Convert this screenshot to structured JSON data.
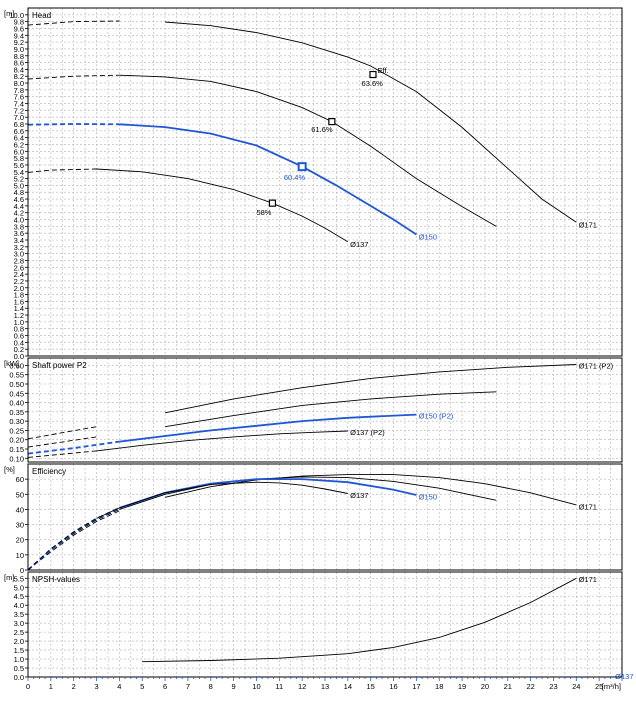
{
  "chart_data": [
    {
      "panel": "head",
      "type": "line",
      "title": "Head",
      "unit": "[m]",
      "y_ticks": [
        "0.0",
        "0.2",
        "0.4",
        "0.6",
        "0.8",
        "1.0",
        "1.2",
        "1.4",
        "1.6",
        "1.8",
        "2.0",
        "2.2",
        "2.4",
        "2.6",
        "2.8",
        "3.0",
        "3.2",
        "3.4",
        "3.6",
        "3.8",
        "4.0",
        "4.2",
        "4.4",
        "4.6",
        "4.8",
        "5.0",
        "5.2",
        "5.4",
        "5.6",
        "5.8",
        "6.0",
        "6.2",
        "6.4",
        "6.6",
        "6.8",
        "7.0",
        "7.2",
        "7.4",
        "7.6",
        "7.8",
        "8.0",
        "8.2",
        "8.4",
        "8.6",
        "8.8",
        "9.0",
        "9.2",
        "9.4",
        "9.6",
        "9.8",
        "10.0"
      ],
      "ylim": [
        0,
        10.2
      ],
      "series": [
        {
          "name": "Ø171",
          "color": "#000000",
          "dashed_to_x": 5,
          "points": [
            [
              0,
              9.7
            ],
            [
              2,
              9.8
            ],
            [
              4,
              9.82
            ],
            [
              6,
              9.79
            ],
            [
              8,
              9.68
            ],
            [
              10,
              9.48
            ],
            [
              12,
              9.18
            ],
            [
              14,
              8.76
            ],
            [
              15,
              8.5
            ],
            [
              17,
              7.75
            ],
            [
              19,
              6.7
            ],
            [
              21,
              5.5
            ],
            [
              22.5,
              4.6
            ],
            [
              24,
              3.92
            ]
          ]
        },
        {
          "name": "Ø150",
          "color": "#000000",
          "dashed_to_x": 4,
          "points": [
            [
              0,
              8.12
            ],
            [
              2,
              8.2
            ],
            [
              4,
              8.23
            ],
            [
              6,
              8.18
            ],
            [
              8,
              8.05
            ],
            [
              10,
              7.75
            ],
            [
              12,
              7.28
            ],
            [
              13.3,
              6.87
            ],
            [
              15,
              6.15
            ],
            [
              17,
              5.2
            ],
            [
              19,
              4.38
            ],
            [
              20.5,
              3.8
            ]
          ]
        },
        {
          "name": "Ø150",
          "color": "#1f57d6",
          "dashed_to_x": 4,
          "points": [
            [
              0,
              6.78
            ],
            [
              2,
              6.8
            ],
            [
              4,
              6.79
            ],
            [
              6,
              6.71
            ],
            [
              8,
              6.52
            ],
            [
              10,
              6.17
            ],
            [
              12,
              5.55
            ],
            [
              13.5,
              5.0
            ],
            [
              15,
              4.4
            ],
            [
              16,
              4.0
            ],
            [
              17,
              3.56
            ]
          ]
        },
        {
          "name": "Ø137",
          "color": "#000000",
          "dashed_to_x": 3,
          "points": [
            [
              0,
              5.38
            ],
            [
              1,
              5.45
            ],
            [
              3,
              5.48
            ],
            [
              5,
              5.4
            ],
            [
              7,
              5.2
            ],
            [
              9,
              4.88
            ],
            [
              10.7,
              4.48
            ],
            [
              12,
              4.1
            ],
            [
              13,
              3.75
            ],
            [
              14,
              3.35
            ]
          ]
        }
      ],
      "labels": [
        {
          "text": "Ø171",
          "x": 24.1,
          "y": 3.85,
          "color": "#000000"
        },
        {
          "text": "Ø150",
          "x": 17.1,
          "y": 3.5,
          "color": "#1f57d6"
        },
        {
          "text": "Ø137",
          "x": 14.1,
          "y": 3.28,
          "color": "#000000"
        },
        {
          "text": "Eff.",
          "x": 15.3,
          "y": 8.38,
          "color": "#000000"
        },
        {
          "text": "63.6%",
          "x": 14.6,
          "y": 8.0,
          "color": "#000000"
        },
        {
          "text": "61.6%",
          "x": 12.4,
          "y": 6.65,
          "color": "#000000"
        },
        {
          "text": "60.4%",
          "x": 11.2,
          "y": 5.25,
          "color": "#1f57d6"
        },
        {
          "text": "58%",
          "x": 10.0,
          "y": 4.22,
          "color": "#000000"
        }
      ],
      "markers": [
        {
          "x": 15.1,
          "y": 8.25,
          "color": "#000000",
          "large": false
        },
        {
          "x": 13.3,
          "y": 6.87,
          "color": "#000000",
          "large": false
        },
        {
          "x": 12.0,
          "y": 5.55,
          "color": "#1f57d6",
          "large": true
        },
        {
          "x": 10.7,
          "y": 4.48,
          "color": "#000000",
          "large": false
        }
      ]
    },
    {
      "panel": "power",
      "type": "line",
      "title": "Shaft power P2",
      "unit": "[kW]",
      "y_ticks": [
        "0.10",
        "0.15",
        "0.20",
        "0.25",
        "0.30",
        "0.35",
        "0.40",
        "0.45",
        "0.50",
        "0.55",
        "0.60"
      ],
      "ylim": [
        0.08,
        0.64
      ],
      "series": [
        {
          "name": "Ø171 (P2)",
          "color": "#000000",
          "dashed_to_x": 5,
          "points": [
            [
              0,
              0.205
            ],
            [
              3,
              0.27
            ],
            [
              6,
              0.345
            ],
            [
              9,
              0.42
            ],
            [
              12,
              0.48
            ],
            [
              15,
              0.53
            ],
            [
              18,
              0.565
            ],
            [
              21,
              0.59
            ],
            [
              24,
              0.605
            ]
          ]
        },
        {
          "name": "Ø150",
          "color": "#000000",
          "dashed_to_x": 4,
          "points": [
            [
              0,
              0.16
            ],
            [
              3,
              0.215
            ],
            [
              6,
              0.27
            ],
            [
              9,
              0.33
            ],
            [
              12,
              0.385
            ],
            [
              15,
              0.42
            ],
            [
              18,
              0.445
            ],
            [
              20.5,
              0.458
            ]
          ]
        },
        {
          "name": "Ø150 (P2)",
          "color": "#1f57d6",
          "dashed_to_x": 4,
          "points": [
            [
              0,
              0.125
            ],
            [
              2,
              0.155
            ],
            [
              4,
              0.19
            ],
            [
              6,
              0.22
            ],
            [
              8,
              0.25
            ],
            [
              10,
              0.275
            ],
            [
              12,
              0.3
            ],
            [
              14,
              0.318
            ],
            [
              17,
              0.335
            ]
          ]
        },
        {
          "name": "Ø137 (P2)",
          "color": "#000000",
          "dashed_to_x": 3,
          "points": [
            [
              0,
              0.105
            ],
            [
              3,
              0.14
            ],
            [
              5,
              0.17
            ],
            [
              7,
              0.195
            ],
            [
              9,
              0.215
            ],
            [
              11,
              0.232
            ],
            [
              12.5,
              0.24
            ],
            [
              14,
              0.247
            ]
          ]
        }
      ],
      "labels": [
        {
          "text": "Ø171 (P2)",
          "x": 24.1,
          "y": 0.6,
          "color": "#000000"
        },
        {
          "text": "Ø150 (P2)",
          "x": 17.1,
          "y": 0.33,
          "color": "#1f57d6"
        },
        {
          "text": "Ø137 (P2)",
          "x": 14.1,
          "y": 0.242,
          "color": "#000000"
        }
      ],
      "markers": []
    },
    {
      "panel": "efficiency",
      "type": "line",
      "title": "Efficiency",
      "unit": "[%]",
      "y_ticks": [
        "0",
        "10",
        "20",
        "30",
        "40",
        "50",
        "60"
      ],
      "ylim": [
        0,
        70
      ],
      "series": [
        {
          "name": "Ø171",
          "color": "#000000",
          "dashed_to_x": 5,
          "points": [
            [
              0,
              0
            ],
            [
              1,
              12
            ],
            [
              2,
              23
            ],
            [
              3,
              32
            ],
            [
              4,
              39
            ],
            [
              6,
              48
            ],
            [
              8,
              55
            ],
            [
              10,
              59.5
            ],
            [
              12,
              62
            ],
            [
              14,
              63
            ],
            [
              16,
              63
            ],
            [
              18,
              61
            ],
            [
              20,
              57
            ],
            [
              22,
              51
            ],
            [
              24,
              43
            ]
          ]
        },
        {
          "name": "Ø150",
          "color": "#000000",
          "dashed_to_x": 4,
          "points": [
            [
              0,
              0
            ],
            [
              1,
              13
            ],
            [
              2,
              24
            ],
            [
              3,
              33
            ],
            [
              4,
              40
            ],
            [
              6,
              50
            ],
            [
              8,
              56.5
            ],
            [
              10,
              60
            ],
            [
              12,
              61.5
            ],
            [
              14,
              61
            ],
            [
              16,
              58.5
            ],
            [
              18,
              54
            ],
            [
              20.5,
              46
            ]
          ]
        },
        {
          "name": "Ø150",
          "color": "#1f57d6",
          "dashed_to_x": 4,
          "points": [
            [
              0,
              0
            ],
            [
              1,
              13.5
            ],
            [
              2,
              25
            ],
            [
              3,
              34
            ],
            [
              4,
              41
            ],
            [
              6,
              51
            ],
            [
              8,
              57
            ],
            [
              10,
              60
            ],
            [
              12,
              60
            ],
            [
              14,
              58
            ],
            [
              16,
              53
            ],
            [
              17,
              49.5
            ]
          ]
        },
        {
          "name": "Ø137",
          "color": "#000000",
          "dashed_to_x": 3,
          "points": [
            [
              0,
              0
            ],
            [
              1,
              14
            ],
            [
              2,
              25
            ],
            [
              3,
              34
            ],
            [
              4,
              41
            ],
            [
              6,
              51
            ],
            [
              8,
              56.5
            ],
            [
              10,
              58
            ],
            [
              11,
              57.5
            ],
            [
              12,
              56
            ],
            [
              13,
              53.5
            ],
            [
              14,
              50.5
            ]
          ]
        }
      ],
      "labels": [
        {
          "text": "Ø171",
          "x": 24.1,
          "y": 42,
          "color": "#000000"
        },
        {
          "text": "Ø150",
          "x": 17.1,
          "y": 48.5,
          "color": "#1f57d6"
        },
        {
          "text": "Ø137",
          "x": 14.1,
          "y": 49.5,
          "color": "#000000"
        }
      ],
      "markers": []
    },
    {
      "panel": "npsh",
      "type": "line",
      "title": "NPSH-values",
      "unit": "[m]",
      "y_ticks": [
        "0.0",
        "0.5",
        "1.0",
        "1.5",
        "2.0",
        "2.5",
        "3.0",
        "3.5",
        "4.0",
        "4.5",
        "5.0",
        "5.5"
      ],
      "ylim": [
        0,
        5.85
      ],
      "series": [
        {
          "name": "Ø171",
          "color": "#000000",
          "dashed_to_x": 0,
          "points": [
            [
              5,
              0.85
            ],
            [
              8,
              0.92
            ],
            [
              11,
              1.05
            ],
            [
              14,
              1.3
            ],
            [
              16,
              1.65
            ],
            [
              18,
              2.2
            ],
            [
              20,
              3.05
            ],
            [
              22,
              4.15
            ],
            [
              24,
              5.5
            ]
          ]
        }
      ],
      "labels": [
        {
          "text": "Ø171",
          "x": 24.1,
          "y": 5.45,
          "color": "#000000"
        },
        {
          "text": "Ø137",
          "x": 25.7,
          "y": 0.05,
          "color": "#1f57d6"
        }
      ],
      "markers": []
    }
  ],
  "x_axis": {
    "unit": "[m³/h]",
    "xlim": [
      0,
      26
    ],
    "ticks": [
      "0",
      "1",
      "2",
      "3",
      "4",
      "5",
      "6",
      "7",
      "8",
      "9",
      "10",
      "11",
      "12",
      "13",
      "14",
      "15",
      "16",
      "17",
      "18",
      "19",
      "20",
      "21",
      "22",
      "23",
      "24",
      "25"
    ]
  }
}
